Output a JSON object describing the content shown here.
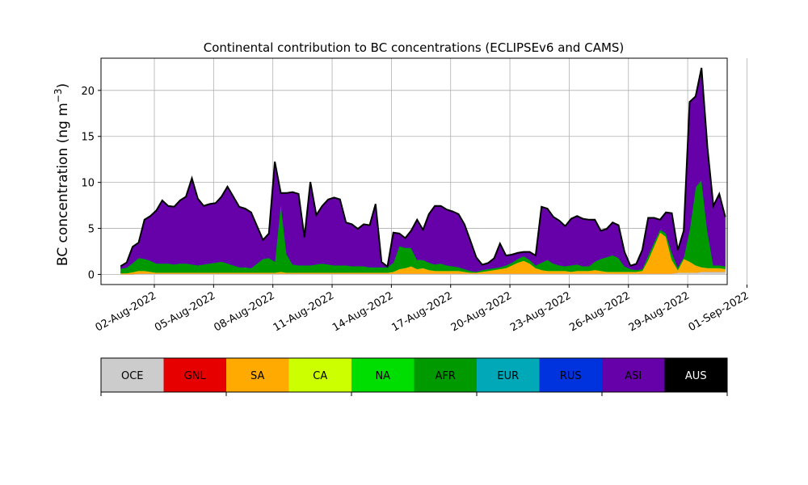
{
  "chart_data": {
    "type": "area",
    "title": "Continental contribution to BC concentrations (ECLIPSEv6 and CAMS)",
    "ylabel_prefix": "BC concentration (ng m",
    "ylabel_sup": "−3",
    "ylabel_suffix": ")",
    "xlabel": "",
    "xlim": [
      -0.7,
      31
    ],
    "ylim": [
      -1.1,
      23.5
    ],
    "yticks": [
      0,
      5,
      10,
      15,
      20
    ],
    "xticks": [
      {
        "x": 2,
        "label": "02-Aug-2022"
      },
      {
        "x": 5,
        "label": "05-Aug-2022"
      },
      {
        "x": 8,
        "label": "08-Aug-2022"
      },
      {
        "x": 11,
        "label": "11-Aug-2022"
      },
      {
        "x": 14,
        "label": "14-Aug-2022"
      },
      {
        "x": 17,
        "label": "17-Aug-2022"
      },
      {
        "x": 20,
        "label": "20-Aug-2022"
      },
      {
        "x": 23,
        "label": "23-Aug-2022"
      },
      {
        "x": 26,
        "label": "26-Aug-2022"
      },
      {
        "x": 29,
        "label": "29-Aug-2022"
      },
      {
        "x": 32,
        "label": "01-Sep-2022"
      }
    ],
    "grid": true,
    "x": [
      0.3,
      0.6,
      0.9,
      1.2,
      1.5,
      1.8,
      2.1,
      2.4,
      2.7,
      3.0,
      3.3,
      3.6,
      3.9,
      4.2,
      4.5,
      4.8,
      5.1,
      5.4,
      5.7,
      6.0,
      6.3,
      6.6,
      6.9,
      7.2,
      7.5,
      7.8,
      8.1,
      8.4,
      8.7,
      9.0,
      9.3,
      9.6,
      9.9,
      10.2,
      10.5,
      10.8,
      11.1,
      11.4,
      11.7,
      12.0,
      12.3,
      12.6,
      12.9,
      13.2,
      13.5,
      13.8,
      14.1,
      14.4,
      14.7,
      15.0,
      15.3,
      15.6,
      15.9,
      16.2,
      16.5,
      16.8,
      17.1,
      17.4,
      17.7,
      18.0,
      18.3,
      18.6,
      18.9,
      19.2,
      19.5,
      19.8,
      20.1,
      20.4,
      20.7,
      21.0,
      21.3,
      21.6,
      21.9,
      22.2,
      22.5,
      22.8,
      23.1,
      23.4,
      23.7,
      24.0,
      24.3,
      24.6,
      24.9,
      25.2,
      25.5,
      25.8,
      26.1,
      26.4,
      26.7,
      27.0,
      27.3,
      27.6,
      27.9,
      28.2,
      28.5,
      28.8,
      29.1,
      29.4,
      29.7,
      30.0,
      30.3,
      30.6,
      30.9
    ],
    "series": [
      {
        "name": "OCE",
        "color": "#cccccc",
        "values": [
          0.05,
          0.05,
          0.05,
          0.1,
          0.1,
          0.1,
          0.1,
          0.1,
          0.1,
          0.1,
          0.1,
          0.1,
          0.1,
          0.1,
          0.1,
          0.1,
          0.1,
          0.1,
          0.1,
          0.1,
          0.1,
          0.1,
          0.1,
          0.1,
          0.1,
          0.1,
          0.1,
          0.1,
          0.1,
          0.1,
          0.1,
          0.1,
          0.1,
          0.1,
          0.1,
          0.1,
          0.1,
          0.1,
          0.1,
          0.1,
          0.1,
          0.1,
          0.1,
          0.1,
          0.1,
          0.1,
          0.1,
          0.1,
          0.1,
          0.1,
          0.1,
          0.1,
          0.1,
          0.1,
          0.1,
          0.1,
          0.1,
          0.1,
          0.1,
          0.1,
          0.1,
          0.1,
          0.1,
          0.1,
          0.1,
          0.1,
          0.1,
          0.1,
          0.1,
          0.1,
          0.1,
          0.1,
          0.1,
          0.1,
          0.1,
          0.1,
          0.1,
          0.1,
          0.1,
          0.1,
          0.1,
          0.1,
          0.1,
          0.1,
          0.1,
          0.1,
          0.1,
          0.1,
          0.1,
          0.1,
          0.1,
          0.1,
          0.1,
          0.1,
          0.2,
          0.2,
          0.2,
          0.2,
          0.3,
          0.3,
          0.3,
          0.3,
          0.3
        ]
      },
      {
        "name": "GNL",
        "color": "#e60000",
        "values": [
          0,
          0,
          0,
          0,
          0,
          0,
          0,
          0,
          0,
          0,
          0,
          0,
          0,
          0,
          0,
          0,
          0,
          0,
          0,
          0,
          0,
          0,
          0,
          0,
          0,
          0,
          0,
          0,
          0,
          0,
          0,
          0,
          0,
          0,
          0,
          0,
          0,
          0,
          0,
          0,
          0,
          0,
          0,
          0,
          0,
          0,
          0,
          0,
          0,
          0,
          0,
          0,
          0,
          0,
          0,
          0,
          0,
          0,
          0,
          0,
          0,
          0,
          0,
          0,
          0,
          0,
          0,
          0,
          0,
          0,
          0,
          0,
          0,
          0,
          0,
          0,
          0,
          0,
          0,
          0,
          0,
          0,
          0,
          0,
          0,
          0,
          0,
          0,
          0,
          0,
          0,
          0,
          0,
          0,
          0,
          0,
          0,
          0,
          0,
          0,
          0,
          0,
          0
        ]
      },
      {
        "name": "SA",
        "color": "#ffaa00",
        "values": [
          0.1,
          0.1,
          0.2,
          0.3,
          0.3,
          0.2,
          0.1,
          0.1,
          0.1,
          0.1,
          0.1,
          0.1,
          0.1,
          0.1,
          0.1,
          0.1,
          0.1,
          0.1,
          0.1,
          0.1,
          0.1,
          0.1,
          0.1,
          0.1,
          0.1,
          0.1,
          0.1,
          0.2,
          0.1,
          0.1,
          0.1,
          0.1,
          0.1,
          0.1,
          0.1,
          0.1,
          0.1,
          0.1,
          0.1,
          0.1,
          0.1,
          0.1,
          0.1,
          0.1,
          0.1,
          0.1,
          0.2,
          0.5,
          0.6,
          0.8,
          0.5,
          0.6,
          0.4,
          0.3,
          0.3,
          0.3,
          0.3,
          0.3,
          0.2,
          0.1,
          0.1,
          0.2,
          0.3,
          0.4,
          0.5,
          0.6,
          0.9,
          1.2,
          1.4,
          1.1,
          0.6,
          0.4,
          0.3,
          0.3,
          0.3,
          0.3,
          0.2,
          0.3,
          0.3,
          0.3,
          0.4,
          0.3,
          0.2,
          0.2,
          0.2,
          0.2,
          0.2,
          0.2,
          0.3,
          1.5,
          3.0,
          4.5,
          4.0,
          1.5,
          0.3,
          1.5,
          1.2,
          0.8,
          0.5,
          0.4,
          0.4,
          0.4,
          0.3
        ]
      },
      {
        "name": "CA",
        "color": "#ccff00",
        "values": [
          0,
          0,
          0,
          0,
          0,
          0,
          0,
          0,
          0,
          0,
          0,
          0,
          0,
          0,
          0,
          0,
          0,
          0,
          0,
          0,
          0,
          0,
          0,
          0,
          0,
          0,
          0,
          0,
          0,
          0,
          0,
          0,
          0,
          0,
          0,
          0,
          0,
          0,
          0,
          0,
          0,
          0,
          0,
          0,
          0,
          0,
          0,
          0,
          0,
          0,
          0,
          0,
          0,
          0,
          0,
          0,
          0,
          0,
          0,
          0,
          0,
          0,
          0,
          0,
          0,
          0,
          0,
          0,
          0,
          0,
          0,
          0,
          0,
          0,
          0,
          0,
          0,
          0,
          0,
          0,
          0,
          0,
          0,
          0,
          0,
          0,
          0,
          0,
          0,
          0,
          0,
          0,
          0,
          0,
          0,
          0,
          0,
          0,
          0,
          0,
          0,
          0,
          0
        ]
      },
      {
        "name": "NA",
        "color": "#00dd00",
        "values": [
          0,
          0,
          0,
          0,
          0,
          0,
          0,
          0,
          0,
          0,
          0,
          0,
          0,
          0,
          0,
          0,
          0,
          0,
          0,
          0,
          0,
          0,
          0,
          0,
          0,
          0,
          0,
          0,
          0,
          0,
          0,
          0,
          0,
          0,
          0,
          0,
          0,
          0,
          0,
          0,
          0,
          0,
          0,
          0,
          0,
          0,
          0,
          0,
          0,
          0,
          0,
          0,
          0,
          0,
          0,
          0,
          0,
          0,
          0,
          0,
          0,
          0,
          0,
          0,
          0,
          0,
          0,
          0,
          0,
          0,
          0,
          0,
          0,
          0,
          0,
          0,
          0,
          0,
          0,
          0,
          0,
          0,
          0,
          0,
          0,
          0,
          0,
          0,
          0,
          0,
          0,
          0,
          0,
          0,
          0,
          0,
          0,
          0,
          0,
          0,
          0,
          0,
          0
        ]
      },
      {
        "name": "AFR",
        "color": "#009a00",
        "values": [
          0.5,
          0.6,
          1.0,
          1.4,
          1.3,
          1.2,
          1.0,
          1.0,
          1.0,
          0.9,
          1.0,
          1.0,
          0.9,
          0.8,
          0.9,
          1.0,
          1.1,
          1.2,
          1.0,
          0.8,
          0.6,
          0.6,
          0.5,
          1.0,
          1.5,
          1.6,
          1.2,
          7.5,
          2.0,
          0.9,
          0.8,
          0.8,
          0.8,
          0.9,
          1.0,
          0.9,
          0.8,
          0.8,
          0.8,
          0.7,
          0.7,
          0.7,
          0.6,
          0.6,
          0.6,
          0.6,
          1.0,
          2.5,
          2.2,
          2.0,
          1.0,
          0.9,
          0.8,
          0.7,
          0.8,
          0.6,
          0.5,
          0.4,
          0.3,
          0.2,
          0.1,
          0.2,
          0.2,
          0.2,
          0.2,
          0.3,
          0.3,
          0.4,
          0.5,
          0.4,
          0.3,
          0.8,
          1.2,
          0.8,
          0.6,
          0.5,
          0.7,
          0.7,
          0.5,
          0.5,
          0.9,
          1.3,
          1.6,
          1.8,
          1.5,
          0.6,
          0.3,
          0.2,
          0.2,
          0.5,
          0.4,
          0.3,
          0.4,
          0.8,
          0.3,
          0.2,
          3.5,
          8.5,
          9.5,
          4.0,
          0.3,
          0.3,
          0.3
        ]
      },
      {
        "name": "EUR",
        "color": "#00a8b8",
        "values": [
          0,
          0,
          0,
          0,
          0,
          0,
          0,
          0,
          0,
          0,
          0,
          0,
          0,
          0,
          0,
          0,
          0,
          0,
          0,
          0,
          0,
          0,
          0,
          0,
          0,
          0,
          0,
          0,
          0,
          0,
          0,
          0,
          0,
          0,
          0,
          0,
          0,
          0,
          0,
          0,
          0,
          0,
          0,
          0,
          0,
          0,
          0,
          0,
          0,
          0,
          0,
          0,
          0,
          0,
          0,
          0,
          0,
          0,
          0,
          0,
          0,
          0,
          0,
          0,
          0,
          0,
          0,
          0,
          0,
          0,
          0,
          0,
          0,
          0,
          0,
          0,
          0,
          0,
          0,
          0,
          0,
          0,
          0,
          0,
          0,
          0,
          0,
          0,
          0,
          0,
          0,
          0,
          0,
          0,
          0,
          0,
          0,
          0,
          0,
          0,
          0,
          0,
          0
        ]
      },
      {
        "name": "RUS",
        "color": "#0033dd",
        "values": [
          0,
          0,
          0,
          0,
          0,
          0,
          0,
          0,
          0,
          0,
          0,
          0,
          0,
          0,
          0,
          0,
          0,
          0,
          0,
          0,
          0,
          0,
          0,
          0,
          0,
          0,
          0,
          0,
          0,
          0,
          0,
          0,
          0,
          0,
          0,
          0,
          0,
          0,
          0,
          0,
          0,
          0,
          0,
          0,
          0,
          0,
          0,
          0,
          0,
          0,
          0,
          0,
          0,
          0,
          0,
          0,
          0,
          0,
          0,
          0,
          0,
          0,
          0,
          0,
          0,
          0,
          0,
          0,
          0,
          0,
          0,
          0,
          0,
          0,
          0,
          0,
          0,
          0,
          0,
          0,
          0,
          0,
          0,
          0,
          0,
          0,
          0,
          0,
          0,
          0,
          0,
          0,
          0,
          0,
          0,
          0,
          0,
          0,
          0,
          0,
          0,
          0,
          0
        ]
      },
      {
        "name": "ASI",
        "color": "#6600a8",
        "values": [
          0.2,
          0.5,
          1.7,
          1.6,
          4.2,
          4.8,
          5.7,
          6.8,
          6.2,
          6.2,
          6.8,
          7.2,
          9.3,
          7.2,
          6.3,
          6.4,
          6.4,
          7.0,
          8.3,
          7.4,
          6.5,
          6.3,
          6.0,
          4.0,
          2.0,
          2.6,
          10.8,
          1.0,
          6.6,
          7.8,
          7.7,
          3.0,
          9.0,
          5.3,
          6.2,
          7.0,
          7.3,
          7.1,
          4.6,
          4.5,
          4.0,
          4.5,
          4.5,
          6.8,
          0.5,
          0.0,
          3.2,
          1.3,
          1.0,
          1.8,
          4.3,
          3.2,
          5.2,
          6.3,
          6.2,
          6.0,
          5.9,
          5.7,
          4.8,
          3.2,
          1.5,
          0.5,
          0.6,
          1.0,
          2.5,
          1.0,
          0.8,
          0.6,
          0.4,
          0.8,
          1.0,
          6.0,
          5.5,
          5.0,
          4.8,
          4.3,
          5.0,
          5.2,
          5.1,
          5.0,
          4.5,
          3.0,
          3.0,
          3.5,
          3.5,
          1.5,
          0.3,
          0.6,
          2.0,
          4.0,
          2.6,
          1.0,
          2.2,
          4.2,
          1.8,
          2.8,
          13.8,
          9.8,
          12.1,
          9.0,
          6.4,
          7.7,
          5.3
        ]
      },
      {
        "name": "AUS",
        "color": "#000000",
        "values": [
          0.05,
          0.05,
          0.05,
          0.05,
          0.05,
          0.05,
          0.05,
          0.05,
          0.05,
          0.05,
          0.05,
          0.05,
          0.05,
          0.05,
          0.05,
          0.05,
          0.05,
          0.05,
          0.05,
          0.05,
          0.05,
          0.05,
          0.05,
          0.05,
          0.05,
          0.05,
          0.05,
          0.05,
          0.05,
          0.05,
          0.05,
          0.05,
          0.05,
          0.05,
          0.05,
          0.05,
          0.05,
          0.05,
          0.05,
          0.05,
          0.05,
          0.05,
          0.05,
          0.05,
          0.05,
          0.05,
          0.05,
          0.05,
          0.05,
          0.05,
          0.05,
          0.05,
          0.05,
          0.05,
          0.05,
          0.05,
          0.05,
          0.05,
          0.05,
          0.05,
          0.05,
          0.05,
          0.05,
          0.05,
          0.05,
          0.05,
          0.05,
          0.05,
          0.05,
          0.05,
          0.05,
          0.05,
          0.05,
          0.05,
          0.05,
          0.05,
          0.05,
          0.05,
          0.05,
          0.05,
          0.05,
          0.05,
          0.05,
          0.05,
          0.05,
          0.05,
          0.05,
          0.05,
          0.05,
          0.05,
          0.05,
          0.05,
          0.05,
          0.05,
          0.05,
          0.05,
          0.05,
          0.05,
          0.05,
          0.05,
          0.05,
          0.05,
          0.05
        ]
      }
    ],
    "legend": {
      "placement": "bottom",
      "items": [
        {
          "name": "OCE",
          "color": "#cccccc",
          "text_color": "#000000"
        },
        {
          "name": "GNL",
          "color": "#e60000",
          "text_color": "#000000"
        },
        {
          "name": "SA",
          "color": "#ffaa00",
          "text_color": "#000000"
        },
        {
          "name": "CA",
          "color": "#ccff00",
          "text_color": "#000000"
        },
        {
          "name": "NA",
          "color": "#00dd00",
          "text_color": "#000000"
        },
        {
          "name": "AFR",
          "color": "#009a00",
          "text_color": "#000000"
        },
        {
          "name": "EUR",
          "color": "#00a8b8",
          "text_color": "#000000"
        },
        {
          "name": "RUS",
          "color": "#0033dd",
          "text_color": "#000000"
        },
        {
          "name": "ASI",
          "color": "#6600a8",
          "text_color": "#000000"
        },
        {
          "name": "AUS",
          "color": "#000000",
          "text_color": "#ffffff"
        }
      ]
    }
  }
}
